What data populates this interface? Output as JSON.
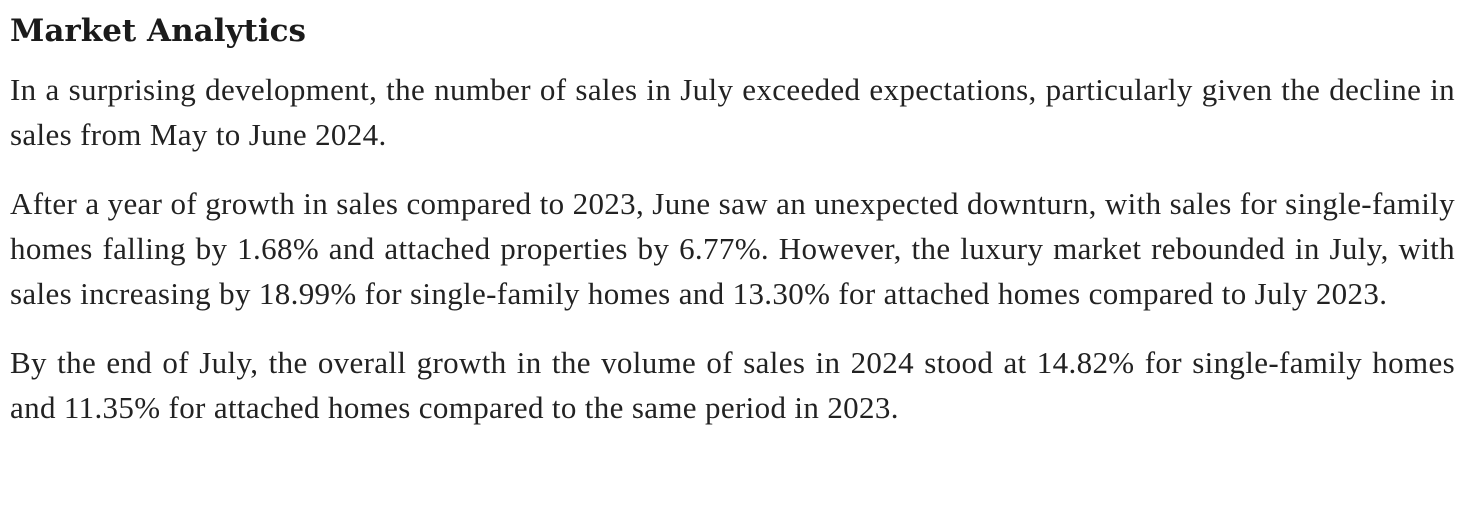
{
  "article": {
    "title": "Market Analytics",
    "paragraphs": [
      "In a surprising development, the number of sales in July exceeded expectations, particularly given the decline in sales from May to June 2024.",
      "After a year of growth in sales compared to 2023, June saw an unexpected downturn, with sales for single-family homes falling by 1.68% and attached properties by 6.77%. However, the luxury market rebounded in July, with sales increasing by 18.99% for single-family homes and 13.30% for attached homes compared to July 2023.",
      "By the end of July, the overall growth in the volume of sales in 2024 stood at 14.82% for single-family homes and 11.35% for attached homes compared to the same period in 2023."
    ]
  }
}
